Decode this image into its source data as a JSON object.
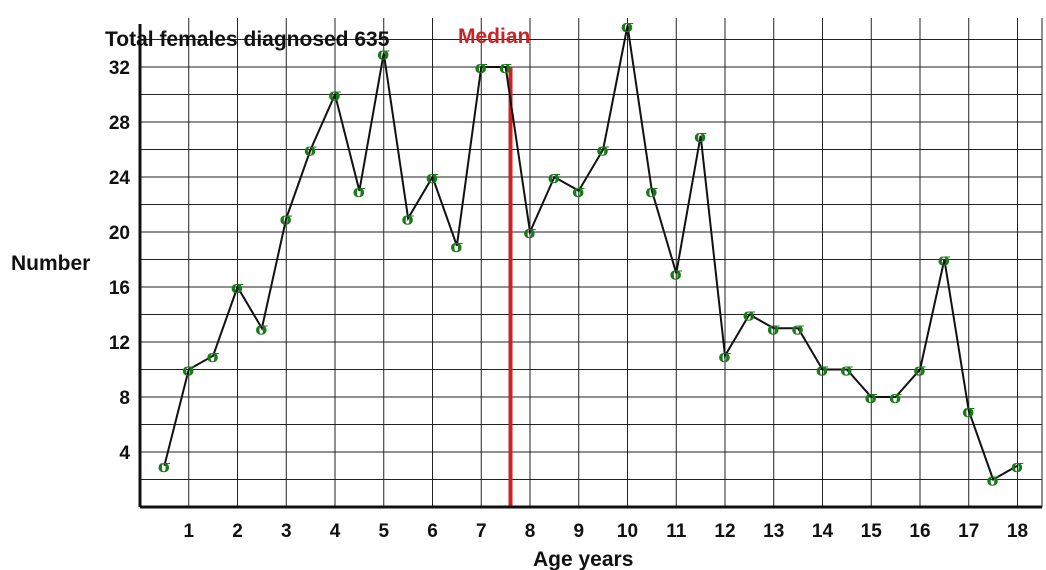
{
  "chart_data": {
    "type": "line",
    "title": "Total females diagnosed 635",
    "xlabel": "Age years",
    "ylabel": "Number",
    "xlim": [
      0,
      18.8
    ],
    "ylim": [
      0,
      32
    ],
    "x_ticks": [
      "1",
      "2",
      "3",
      "4",
      "5",
      "6",
      "7",
      "8",
      "9",
      "10",
      "11",
      "12",
      "13",
      "14",
      "15",
      "16",
      "17",
      "18"
    ],
    "y_ticks": [
      "4",
      "8",
      "12",
      "16",
      "20",
      "24",
      "28",
      "32"
    ],
    "grid": true,
    "marker_symbol": "σ",
    "marker_color": "#1a7a1a",
    "median": {
      "label": "Median",
      "x": 7.6,
      "color": "#cc2222"
    },
    "series": [
      {
        "x": [
          0.5,
          1,
          1.5,
          2,
          2.5,
          3,
          3.5,
          4,
          4.5,
          5,
          5.5,
          6,
          6.5,
          7,
          7.5,
          8,
          8.5,
          9,
          9.5,
          10,
          10.5,
          11,
          11.5,
          12,
          12.5,
          13,
          13.5,
          14,
          14.5,
          15,
          15.5,
          16,
          16.5,
          17,
          17.5,
          18
        ],
        "values": [
          3,
          10,
          11,
          16,
          13,
          21,
          26,
          30,
          23,
          33,
          21,
          24,
          19,
          32,
          32,
          20,
          24,
          23,
          26,
          35,
          23,
          17,
          27,
          11,
          14,
          13,
          13,
          10,
          10,
          8,
          8,
          10,
          18,
          7,
          2,
          3
        ]
      }
    ]
  }
}
